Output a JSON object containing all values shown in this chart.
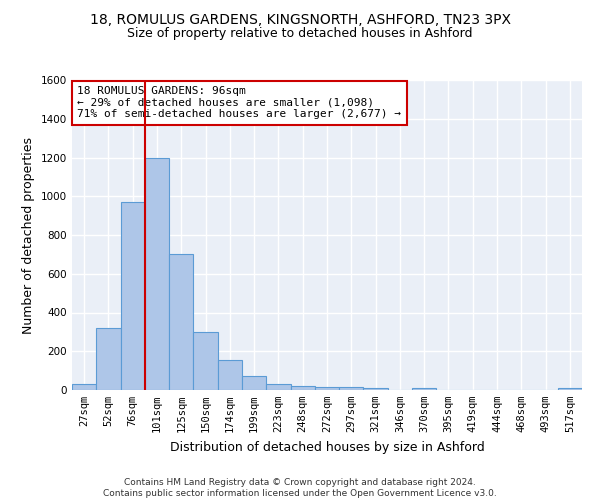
{
  "title": "18, ROMULUS GARDENS, KINGSNORTH, ASHFORD, TN23 3PX",
  "subtitle": "Size of property relative to detached houses in Ashford",
  "xlabel": "Distribution of detached houses by size in Ashford",
  "ylabel": "Number of detached properties",
  "categories": [
    "27sqm",
    "52sqm",
    "76sqm",
    "101sqm",
    "125sqm",
    "150sqm",
    "174sqm",
    "199sqm",
    "223sqm",
    "248sqm",
    "272sqm",
    "297sqm",
    "321sqm",
    "346sqm",
    "370sqm",
    "395sqm",
    "419sqm",
    "444sqm",
    "468sqm",
    "493sqm",
    "517sqm"
  ],
  "values": [
    30,
    320,
    970,
    1200,
    700,
    300,
    155,
    70,
    30,
    20,
    15,
    15,
    10,
    0,
    10,
    0,
    0,
    0,
    0,
    0,
    10
  ],
  "bar_color": "#aec6e8",
  "bar_edge_color": "#5b9bd5",
  "bar_edge_width": 0.8,
  "vline_x_index": 3,
  "vline_color": "#cc0000",
  "annotation_text": "18 ROMULUS GARDENS: 96sqm\n← 29% of detached houses are smaller (1,098)\n71% of semi-detached houses are larger (2,677) →",
  "annotation_box_color": "#ffffff",
  "annotation_box_edge_color": "#cc0000",
  "ylim": [
    0,
    1600
  ],
  "yticks": [
    0,
    200,
    400,
    600,
    800,
    1000,
    1200,
    1400,
    1600
  ],
  "bg_color": "#eaeff7",
  "grid_color": "#ffffff",
  "footer": "Contains HM Land Registry data © Crown copyright and database right 2024.\nContains public sector information licensed under the Open Government Licence v3.0.",
  "title_fontsize": 10,
  "subtitle_fontsize": 9,
  "xlabel_fontsize": 9,
  "ylabel_fontsize": 9,
  "tick_fontsize": 7.5,
  "annotation_fontsize": 8,
  "footer_fontsize": 6.5
}
